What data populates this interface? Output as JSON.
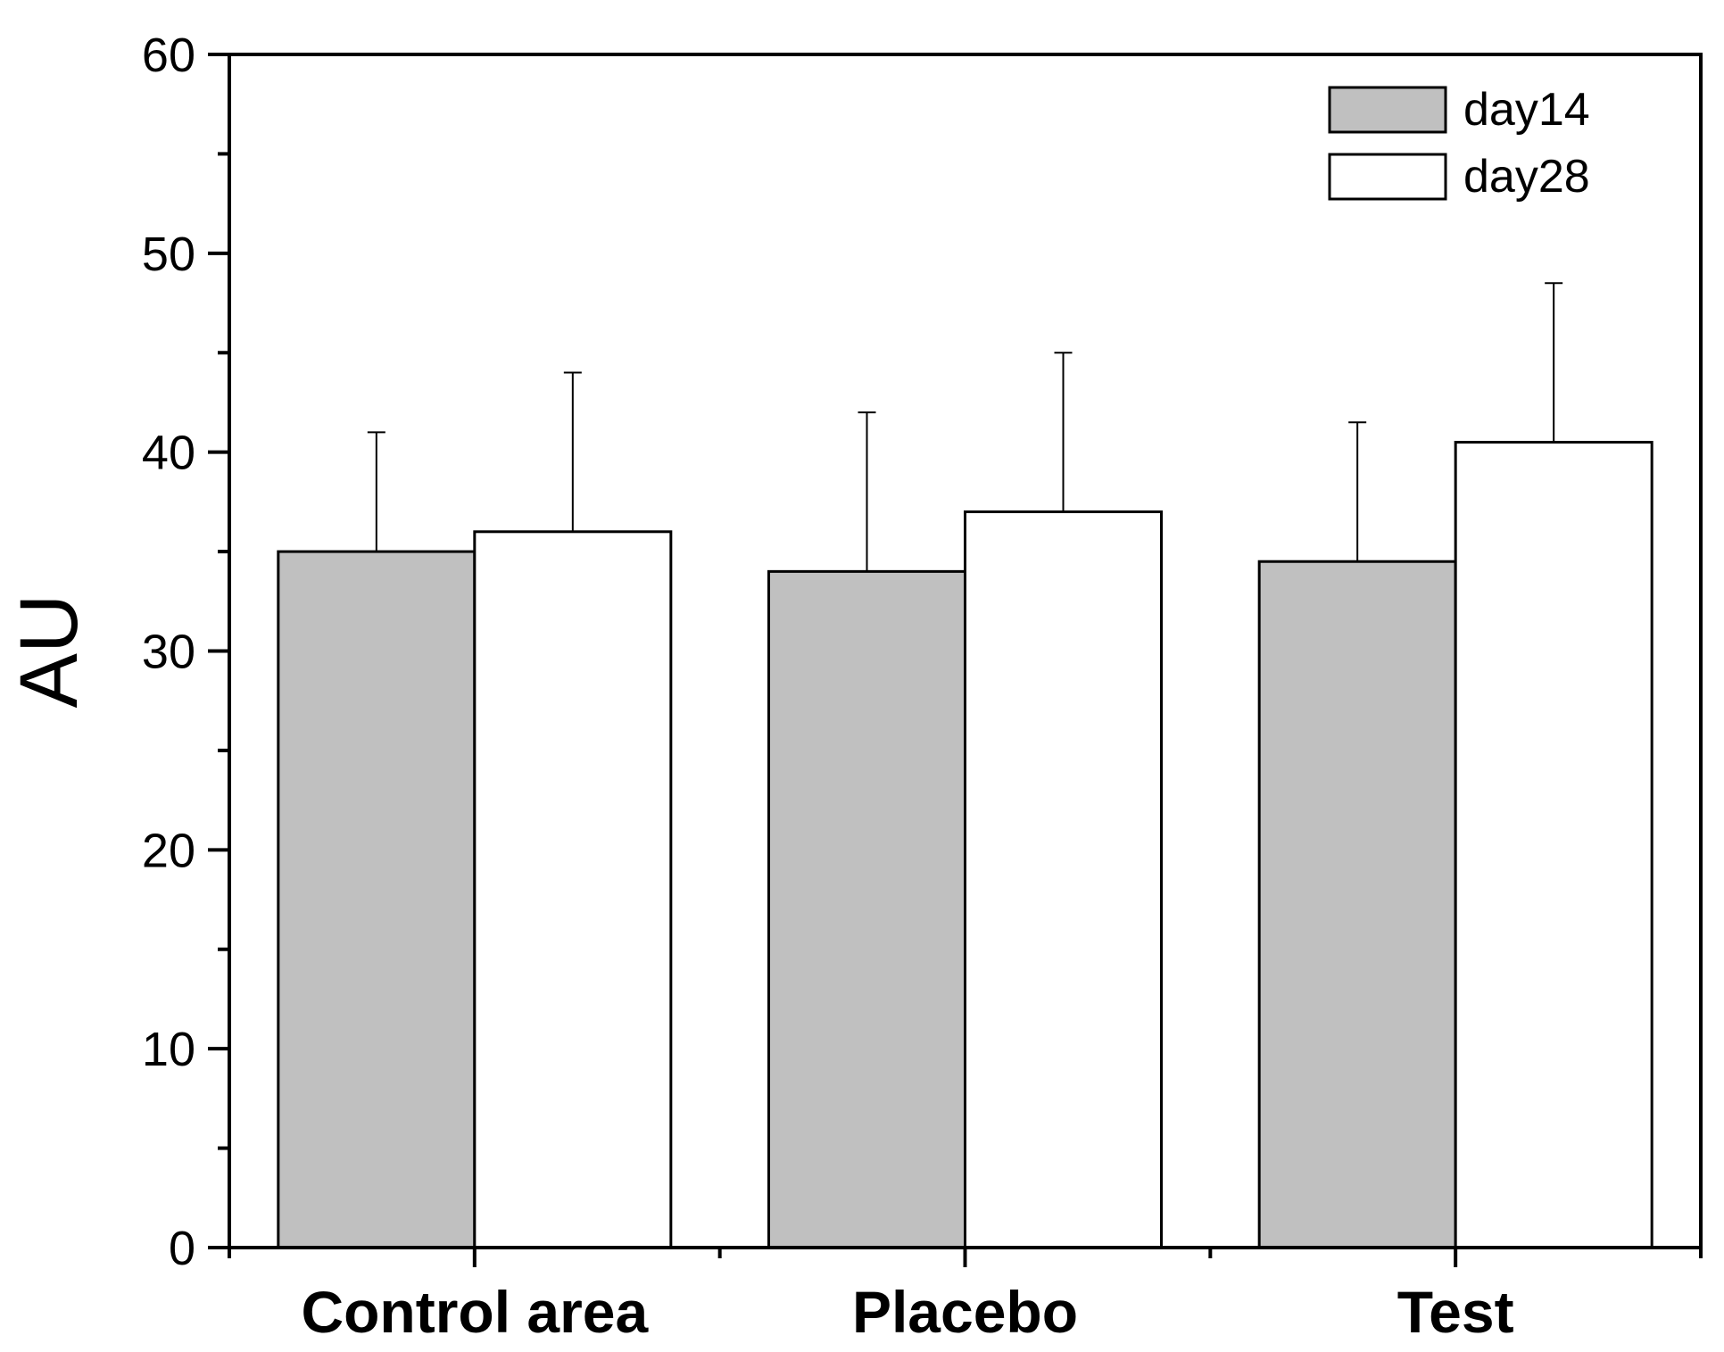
{
  "chart_data": {
    "type": "bar",
    "title": "",
    "xlabel": "",
    "ylabel": "AU",
    "ylim": [
      0,
      60
    ],
    "yticks": [
      "0",
      "10",
      "20",
      "30",
      "40",
      "50",
      "60"
    ],
    "categories": [
      "Control area",
      "Placebo",
      "Test"
    ],
    "series": [
      {
        "name": "day14",
        "values": [
          35,
          34,
          34.5
        ],
        "errors": [
          6,
          8,
          7
        ],
        "color": "#c0c0c0"
      },
      {
        "name": "day28",
        "values": [
          36,
          37,
          40.5
        ],
        "errors": [
          8,
          8,
          8
        ],
        "color": "#ffffff"
      }
    ],
    "legend": {
      "position": "top-right",
      "entries": [
        "day14",
        "day28"
      ]
    },
    "grid": false
  }
}
